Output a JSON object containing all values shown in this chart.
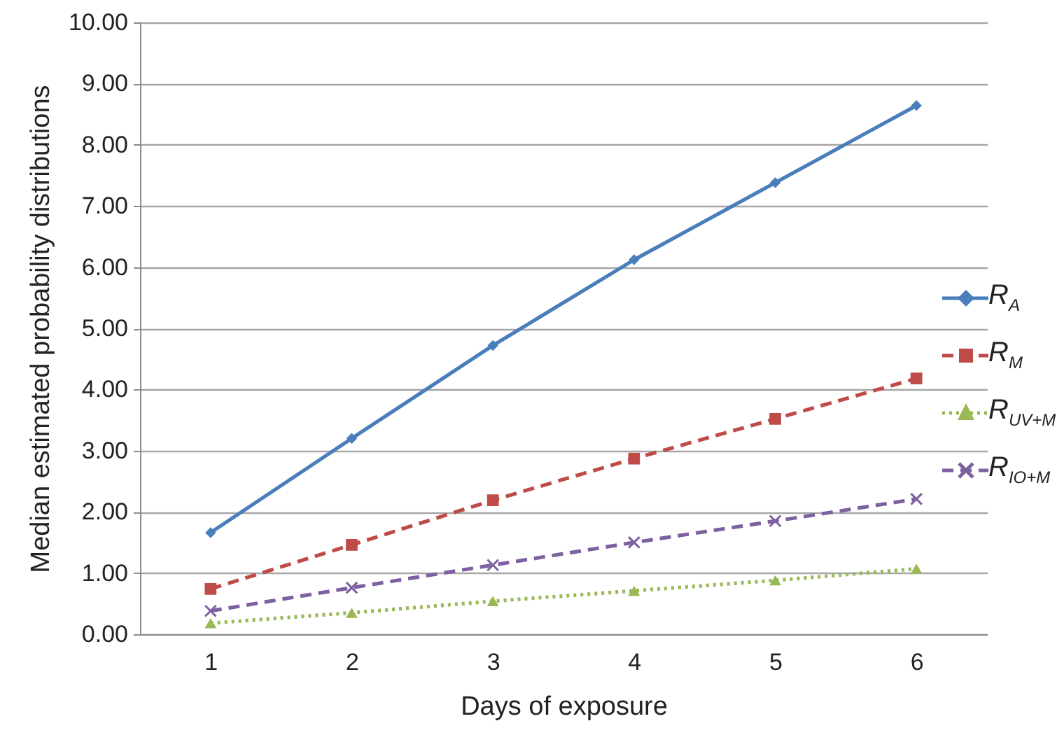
{
  "chart_data": {
    "type": "line",
    "xlabel": "Days of exposure",
    "ylabel": "Median estimated probability distributions",
    "categories": [
      "1",
      "2",
      "3",
      "4",
      "5",
      "6"
    ],
    "ylim": [
      0,
      10
    ],
    "yticks": [
      {
        "value": 0,
        "label": "0.00"
      },
      {
        "value": 1,
        "label": "1.00"
      },
      {
        "value": 2,
        "label": "2.00"
      },
      {
        "value": 3,
        "label": "3.00"
      },
      {
        "value": 4,
        "label": "4.00"
      },
      {
        "value": 5,
        "label": "5.00"
      },
      {
        "value": 6,
        "label": "6.00"
      },
      {
        "value": 7,
        "label": "7.00"
      },
      {
        "value": 8,
        "label": "8.00"
      },
      {
        "value": 9,
        "label": "9.00"
      },
      {
        "value": 10,
        "label": "10.00"
      }
    ],
    "grid": "y",
    "legend": "right",
    "series": [
      {
        "name": "R$_{A}$",
        "color": "#4a7ebb",
        "marker": "diamond",
        "line_style": "solid",
        "values": [
          1.66,
          3.2,
          4.72,
          6.12,
          7.38,
          8.64
        ]
      },
      {
        "name": "R$_{M}$",
        "color": "#be4b48",
        "marker": "square",
        "line_style": "dashed",
        "values": [
          0.74,
          1.46,
          2.19,
          2.87,
          3.52,
          4.18
        ]
      },
      {
        "name": "R$_{UV+M}$",
        "color": "#98b954",
        "marker": "triangle",
        "line_style": "dotted",
        "values": [
          0.18,
          0.35,
          0.54,
          0.71,
          0.88,
          1.07
        ]
      },
      {
        "name": "R$_{IO+M}$",
        "color": "#7d60a0",
        "marker": "cross",
        "line_style": "dashed",
        "values": [
          0.38,
          0.76,
          1.13,
          1.5,
          1.85,
          2.21
        ]
      }
    ]
  }
}
